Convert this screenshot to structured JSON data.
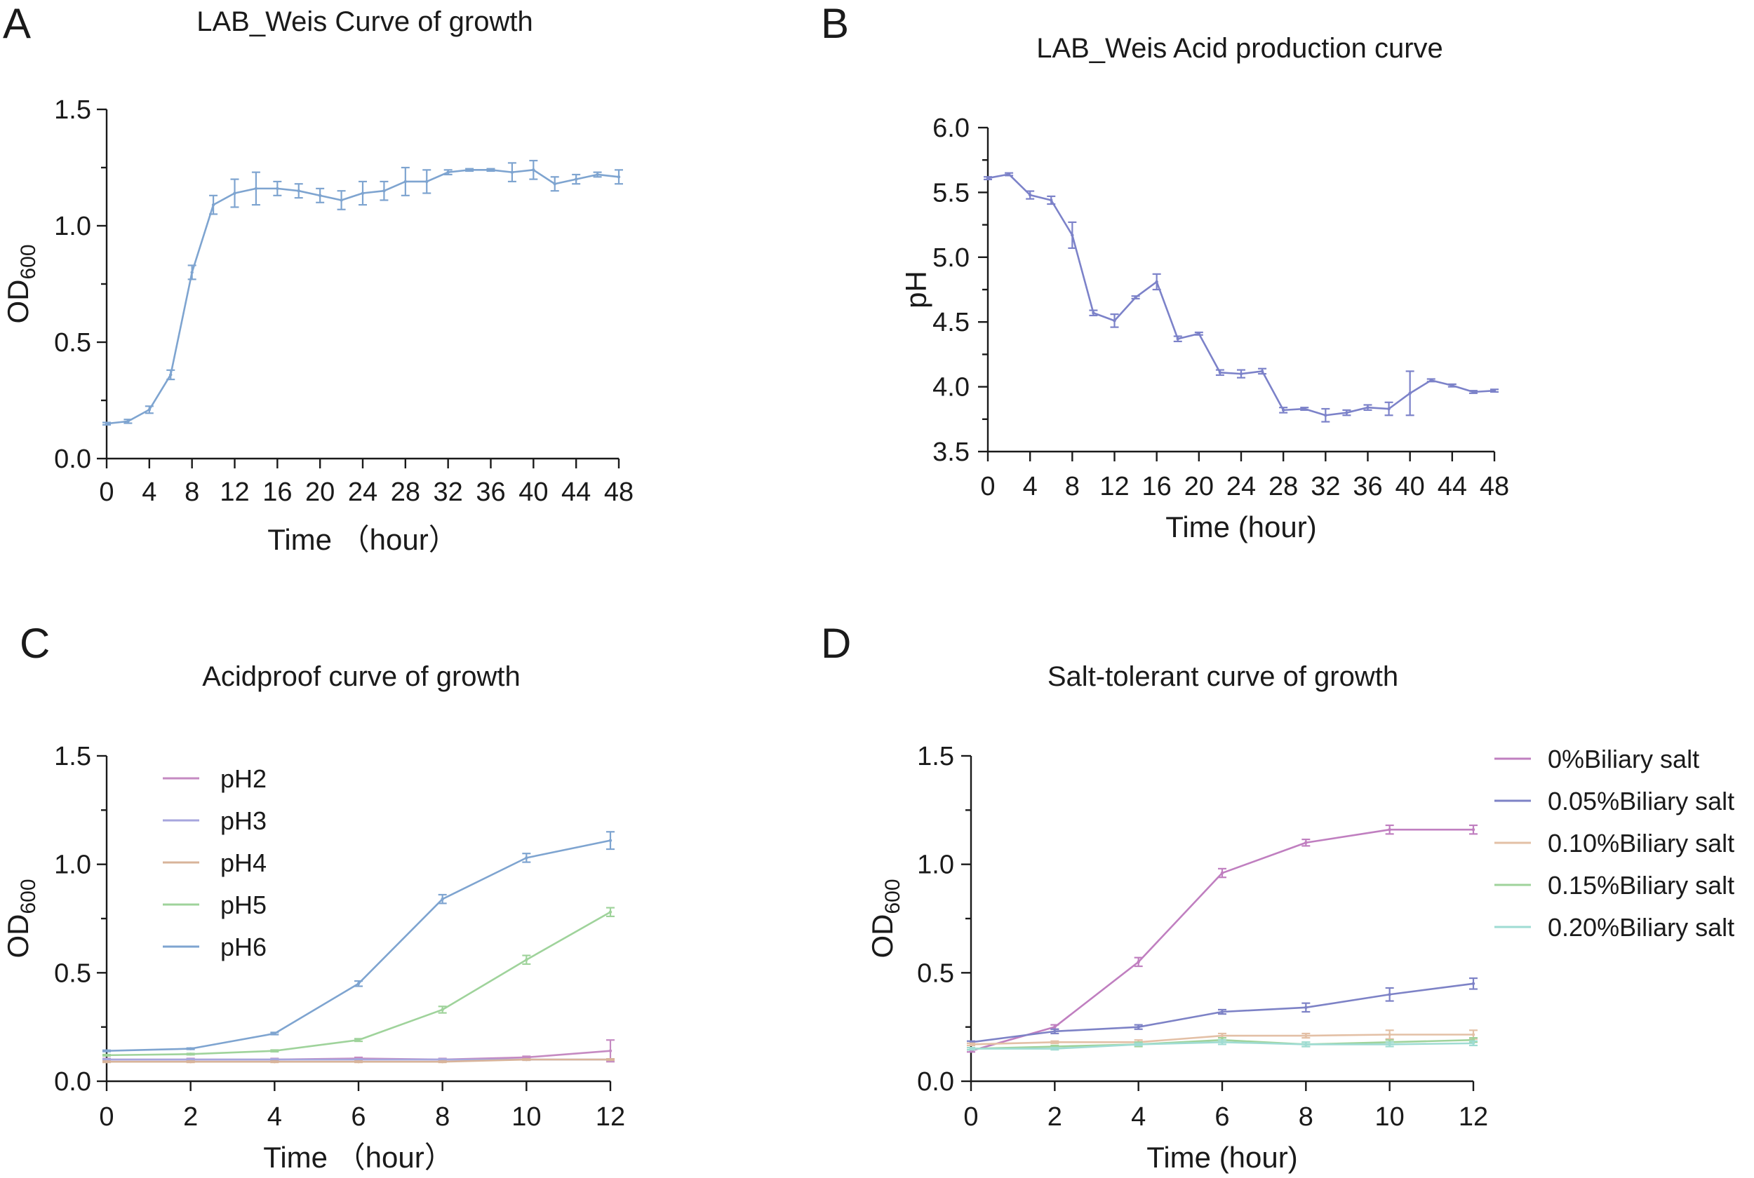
{
  "chart_data": [
    {
      "panel": "A",
      "type": "line",
      "title": "LAB_Weis Curve of growth",
      "xlabel": "Time （hour）",
      "ylabel": "OD",
      "ylabel_sub": "600",
      "xlim": [
        0,
        48
      ],
      "ylim": [
        0,
        1.5
      ],
      "xticks": [
        0,
        4,
        8,
        12,
        16,
        20,
        24,
        28,
        32,
        36,
        40,
        44,
        48
      ],
      "yticks": [
        "0.0",
        "0.5",
        "1.0",
        "1.5"
      ],
      "legend": [],
      "series": [
        {
          "name": "LAB_Weis",
          "color": "#7ea4d0",
          "x": [
            0,
            2,
            4,
            6,
            8,
            10,
            12,
            14,
            16,
            18,
            20,
            22,
            24,
            26,
            28,
            30,
            32,
            34,
            36,
            38,
            40,
            42,
            44,
            46,
            48
          ],
          "values": [
            0.15,
            0.16,
            0.21,
            0.36,
            0.8,
            1.09,
            1.14,
            1.16,
            1.16,
            1.15,
            1.13,
            1.11,
            1.14,
            1.15,
            1.19,
            1.19,
            1.23,
            1.24,
            1.24,
            1.23,
            1.24,
            1.18,
            1.2,
            1.22,
            1.21
          ],
          "err": [
            0.005,
            0.008,
            0.015,
            0.02,
            0.03,
            0.04,
            0.06,
            0.07,
            0.03,
            0.03,
            0.03,
            0.04,
            0.05,
            0.04,
            0.06,
            0.05,
            0.01,
            0.005,
            0.005,
            0.04,
            0.04,
            0.03,
            0.02,
            0.01,
            0.03
          ]
        }
      ]
    },
    {
      "panel": "B",
      "type": "line",
      "title": "LAB_Weis Acid production curve",
      "xlabel": "Time (hour)",
      "ylabel": "pH",
      "ylabel_sub": "",
      "xlim": [
        0,
        48
      ],
      "ylim": [
        3.5,
        6.0
      ],
      "xticks": [
        0,
        4,
        8,
        12,
        16,
        20,
        24,
        28,
        32,
        36,
        40,
        44,
        48
      ],
      "yticks": [
        "3.5",
        "4.0",
        "4.5",
        "5.0",
        "5.5",
        "6.0"
      ],
      "legend": [],
      "series": [
        {
          "name": "pH",
          "color": "#7c82c9",
          "x": [
            0,
            2,
            4,
            6,
            8,
            10,
            12,
            14,
            16,
            18,
            20,
            22,
            24,
            26,
            28,
            30,
            32,
            34,
            36,
            38,
            40,
            42,
            44,
            46,
            48
          ],
          "values": [
            5.61,
            5.64,
            5.48,
            5.44,
            5.17,
            4.57,
            4.51,
            4.69,
            4.81,
            4.37,
            4.41,
            4.11,
            4.1,
            4.12,
            3.82,
            3.83,
            3.78,
            3.8,
            3.84,
            3.83,
            3.95,
            4.05,
            4.01,
            3.96,
            3.97
          ],
          "err": [
            0.01,
            0.01,
            0.03,
            0.03,
            0.1,
            0.02,
            0.05,
            0.01,
            0.06,
            0.02,
            0.01,
            0.02,
            0.03,
            0.02,
            0.02,
            0.01,
            0.05,
            0.02,
            0.02,
            0.05,
            0.17,
            0.01,
            0.01,
            0.01,
            0.01
          ]
        }
      ]
    },
    {
      "panel": "C",
      "type": "line",
      "title": "Acidproof curve of growth",
      "xlabel": "Time （hour）",
      "ylabel": "OD",
      "ylabel_sub": "600",
      "xlim": [
        0,
        12
      ],
      "ylim": [
        0,
        1.5
      ],
      "xticks": [
        0,
        2,
        4,
        6,
        8,
        10,
        12
      ],
      "yticks": [
        "0.0",
        "0.5",
        "1.0",
        "1.5"
      ],
      "legend": [
        "pH2",
        "pH3",
        "pH4",
        "pH5",
        "pH6"
      ],
      "series": [
        {
          "name": "pH2",
          "color": "#c58ac2",
          "x": [
            0,
            2,
            4,
            6,
            8,
            10,
            12
          ],
          "values": [
            0.1,
            0.1,
            0.1,
            0.105,
            0.1,
            0.11,
            0.14
          ],
          "err": [
            0.005,
            0.005,
            0.005,
            0.005,
            0.005,
            0.005,
            0.05
          ]
        },
        {
          "name": "pH3",
          "color": "#a7a6dd",
          "x": [
            0,
            2,
            4,
            6,
            8,
            10,
            12
          ],
          "values": [
            0.1,
            0.1,
            0.1,
            0.1,
            0.1,
            0.1,
            0.1
          ],
          "err": [
            0.003,
            0.003,
            0.003,
            0.003,
            0.003,
            0.003,
            0.003
          ]
        },
        {
          "name": "pH4",
          "color": "#d8b49a",
          "x": [
            0,
            2,
            4,
            6,
            8,
            10,
            12
          ],
          "values": [
            0.09,
            0.09,
            0.09,
            0.09,
            0.09,
            0.1,
            0.1
          ],
          "err": [
            0.003,
            0.003,
            0.003,
            0.003,
            0.003,
            0.003,
            0.003
          ]
        },
        {
          "name": "pH5",
          "color": "#9fd39b",
          "x": [
            0,
            2,
            4,
            6,
            8,
            10,
            12
          ],
          "values": [
            0.12,
            0.125,
            0.14,
            0.19,
            0.33,
            0.56,
            0.78
          ],
          "err": [
            0.003,
            0.003,
            0.004,
            0.006,
            0.015,
            0.02,
            0.02
          ]
        },
        {
          "name": "pH6",
          "color": "#7ea4d0",
          "x": [
            0,
            2,
            4,
            6,
            8,
            10,
            12
          ],
          "values": [
            0.14,
            0.15,
            0.22,
            0.45,
            0.84,
            1.03,
            1.11
          ],
          "err": [
            0.003,
            0.003,
            0.005,
            0.012,
            0.02,
            0.02,
            0.04
          ]
        }
      ]
    },
    {
      "panel": "D",
      "type": "line",
      "title": "Salt-tolerant curve of growth",
      "xlabel": "Time (hour)",
      "ylabel": "OD",
      "ylabel_sub": "600",
      "xlim": [
        0,
        12
      ],
      "ylim": [
        0,
        1.5
      ],
      "xticks": [
        0,
        2,
        4,
        6,
        8,
        10,
        12
      ],
      "yticks": [
        "0.0",
        "0.5",
        "1.0",
        "1.5"
      ],
      "legend": [
        "0%Biliary salt",
        "0.05%Biliary salt",
        "0.10%Biliary salt",
        "0.15%Biliary salt",
        "0.20%Biliary salt"
      ],
      "series": [
        {
          "name": "0%Biliary salt",
          "color": "#c07fc0",
          "x": [
            0,
            2,
            4,
            6,
            8,
            10,
            12
          ],
          "values": [
            0.14,
            0.25,
            0.55,
            0.96,
            1.1,
            1.16,
            1.16
          ],
          "err": [
            0.005,
            0.01,
            0.02,
            0.02,
            0.015,
            0.02,
            0.02
          ]
        },
        {
          "name": "0.05%Biliary salt",
          "color": "#7d82c6",
          "x": [
            0,
            2,
            4,
            6,
            8,
            10,
            12
          ],
          "values": [
            0.18,
            0.23,
            0.25,
            0.32,
            0.34,
            0.4,
            0.45
          ],
          "err": [
            0.005,
            0.01,
            0.01,
            0.01,
            0.02,
            0.03,
            0.025
          ]
        },
        {
          "name": "0.10%Biliary salt",
          "color": "#e3c0a6",
          "x": [
            0,
            2,
            4,
            6,
            8,
            10,
            12
          ],
          "values": [
            0.17,
            0.18,
            0.18,
            0.21,
            0.21,
            0.215,
            0.215
          ],
          "err": [
            0.005,
            0.005,
            0.01,
            0.01,
            0.01,
            0.02,
            0.02
          ]
        },
        {
          "name": "0.15%Biliary salt",
          "color": "#9fd39b",
          "x": [
            0,
            2,
            4,
            6,
            8,
            10,
            12
          ],
          "values": [
            0.15,
            0.16,
            0.17,
            0.19,
            0.17,
            0.18,
            0.19
          ],
          "err": [
            0.005,
            0.005,
            0.01,
            0.01,
            0.01,
            0.01,
            0.01
          ]
        },
        {
          "name": "0.20%Biliary salt",
          "color": "#9fdcd3",
          "x": [
            0,
            2,
            4,
            6,
            8,
            10,
            12
          ],
          "values": [
            0.15,
            0.15,
            0.17,
            0.18,
            0.17,
            0.17,
            0.175
          ],
          "err": [
            0.005,
            0.005,
            0.005,
            0.01,
            0.01,
            0.01,
            0.01
          ]
        }
      ]
    }
  ]
}
